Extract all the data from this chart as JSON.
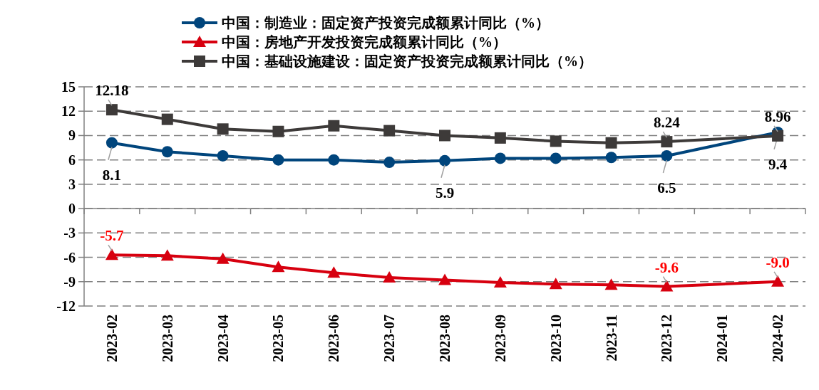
{
  "chart_data": {
    "type": "line",
    "categories": [
      "2023-02",
      "2023-03",
      "2023-04",
      "2023-05",
      "2023-06",
      "2023-07",
      "2023-08",
      "2023-09",
      "2023-10",
      "2023-11",
      "2023-12",
      "2024-01",
      "2024-02"
    ],
    "series": [
      {
        "name": "中国：制造业：固定资产投资完成额累计同比（%）",
        "color": "#00457c",
        "marker": "circle",
        "values": [
          8.1,
          7.0,
          6.5,
          6.0,
          6.0,
          5.7,
          5.9,
          6.2,
          6.2,
          6.3,
          6.5,
          null,
          9.4
        ],
        "value_labels": [
          "8.1",
          null,
          null,
          null,
          null,
          null,
          "5.9",
          null,
          null,
          null,
          "6.5",
          null,
          "9.4"
        ]
      },
      {
        "name": "中国：房地产开发投资完成额累计同比（%）",
        "color": "#d7000f",
        "marker": "triangle",
        "values": [
          -5.7,
          -5.8,
          -6.2,
          -7.2,
          -7.9,
          -8.5,
          -8.8,
          -9.1,
          -9.3,
          -9.4,
          -9.6,
          null,
          -9.0
        ],
        "value_labels": [
          "-5.7",
          null,
          null,
          null,
          null,
          null,
          null,
          null,
          null,
          null,
          "-9.6",
          null,
          "-9.0"
        ]
      },
      {
        "name": "中国：基础设施建设：固定资产投资完成额累计同比（%）",
        "color": "#3d3a39",
        "marker": "square",
        "values": [
          12.18,
          11.0,
          9.8,
          9.5,
          10.2,
          9.6,
          9.0,
          8.7,
          8.3,
          8.1,
          8.24,
          null,
          8.96
        ],
        "value_labels": [
          "12.18",
          null,
          null,
          null,
          null,
          null,
          null,
          null,
          null,
          null,
          "8.24",
          null,
          "8.96"
        ]
      }
    ],
    "ylim": [
      -12,
      15
    ],
    "yticks": [
      -12,
      -9,
      -6,
      -3,
      0,
      3,
      6,
      9,
      12,
      15
    ],
    "grid": "y",
    "legend": "top",
    "line_style": "solid"
  }
}
